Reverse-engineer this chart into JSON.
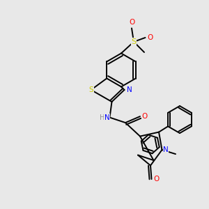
{
  "background_color": "#e8e8e8",
  "figsize": [
    3.0,
    3.0
  ],
  "dpi": 100,
  "atom_colors": {
    "N": "#0000ff",
    "O": "#ff0000",
    "S": "#cccc00",
    "S2": "#808000",
    "C": "#000000",
    "H": "#909090"
  },
  "bond_lw": 1.4,
  "font_size": 7.5
}
